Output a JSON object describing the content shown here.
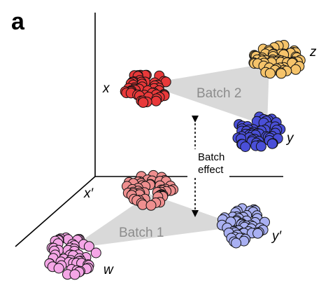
{
  "panel_label": "a",
  "batch2_label": "Batch 2",
  "batch1_label": "Batch 1",
  "batch_effect_line1": "Batch",
  "batch_effect_line2": "effect",
  "points": {
    "x": "x",
    "y": "y",
    "z": "z",
    "x_prime": "x′",
    "y_prime": "y′",
    "w": "w"
  },
  "colors": {
    "x_fill": "#e8393a",
    "y_fill": "#4a4fd8",
    "z_fill": "#f5c36a",
    "x_prime_fill": "#ef8f8f",
    "y_prime_fill": "#a9b0f2",
    "w_fill": "#f4a6e6",
    "triangle_fill": "#d9d9d9",
    "axis": "#000000"
  }
}
